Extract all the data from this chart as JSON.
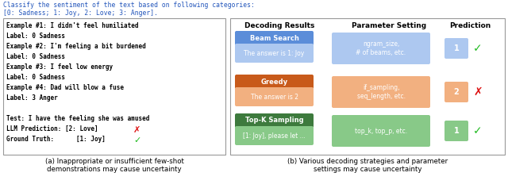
{
  "top_text_line1": "Classify the sentiment of the text based on following categories:",
  "top_text_line2": "[0: Sadness; 1: Joy, 2: Love; 3: Anger].",
  "top_text_color": "#2255bb",
  "left_box_lines": [
    "Example #1: I didn't feel humiliated",
    "Label: 0 Sadness",
    "Example #2: I'm feeling a bit burdened",
    "Label: 0 Sadness",
    "Example #3: I feel low energy",
    "Label: 0 Sadness",
    "Example #4: Dad will blow a fuse",
    "Label: 3 Anger",
    "",
    "Test: I have the feeling she was amused",
    "LLM Prediction: [2: Love]",
    "Ground Truth:      [1: Joy]"
  ],
  "caption_a": "(a) Inappropriate or insufficient few-shot\ndemonstrations may cause uncertainty",
  "caption_b": "(b) Various decoding strategies and parameter\nsettings may cause uncertainty",
  "right_col_header1": "Decoding Results",
  "right_col_header2": "Parameter Setting",
  "right_col_header3": "Prediction",
  "rows": [
    {
      "method": "Beam Search",
      "result": "The answer is 1: Joy",
      "param": "ngram_size,\n# of beams, etc.",
      "pred": "1",
      "correct": true,
      "method_color": "#5b8dd9",
      "result_color": "#adc8f0",
      "param_color": "#adc8f0",
      "pred_color": "#adc8f0"
    },
    {
      "method": "Greedy",
      "result": "The answer is 2",
      "param": "if_sampling,\nseq_length, etc.",
      "pred": "2",
      "correct": false,
      "method_color": "#c85a1a",
      "result_color": "#f2b080",
      "param_color": "#f2b080",
      "pred_color": "#f2b080"
    },
    {
      "method": "Top-K Sampling",
      "result": "[1: Joy], please let ...",
      "param": "top_k, top_p, etc.",
      "pred": "1",
      "correct": true,
      "method_color": "#3d7a3d",
      "result_color": "#88c988",
      "param_color": "#88c988",
      "pred_color": "#88c988"
    }
  ],
  "check_color": "#22bb22",
  "cross_color": "#dd1111",
  "box_border": "#999999"
}
